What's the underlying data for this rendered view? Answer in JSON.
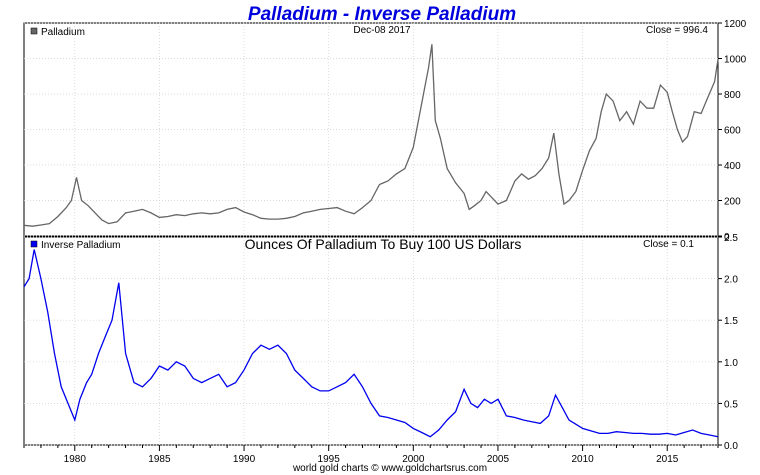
{
  "chart_title": "Palladium - Inverse Palladium",
  "date_label": "Dec-08  2017",
  "footer": "world gold charts © www.goldchartsrus.com",
  "colors": {
    "title": "#0000dd",
    "palladium": "#666666",
    "inverse": "#0000ee",
    "grid": "#cfcfcf"
  },
  "chart_data": [
    {
      "type": "line",
      "series": [
        {
          "name": "Palladium"
        }
      ],
      "close_label": "Close = 996.4",
      "ylim": [
        0,
        1200
      ],
      "yticks": [
        0,
        200,
        400,
        600,
        800,
        1000,
        1200
      ],
      "xlim": [
        1977,
        2018
      ],
      "x": [
        1977.0,
        1977.5,
        1978.0,
        1978.5,
        1979.0,
        1979.5,
        1979.8,
        1980.1,
        1980.4,
        1980.8,
        1981.2,
        1981.6,
        1982.0,
        1982.5,
        1983.0,
        1983.5,
        1984.0,
        1984.5,
        1985.0,
        1985.5,
        1986.0,
        1986.5,
        1987.0,
        1987.5,
        1988.0,
        1988.5,
        1989.0,
        1989.5,
        1990.0,
        1990.5,
        1991.0,
        1991.5,
        1992.0,
        1992.5,
        1993.0,
        1993.5,
        1994.0,
        1994.5,
        1995.0,
        1995.5,
        1996.0,
        1996.5,
        1997.0,
        1997.5,
        1998.0,
        1998.5,
        1999.0,
        1999.5,
        2000.0,
        2000.3,
        2000.6,
        2000.9,
        2001.1,
        2001.3,
        2001.6,
        2002.0,
        2002.5,
        2003.0,
        2003.3,
        2003.6,
        2004.0,
        2004.3,
        2004.7,
        2005.0,
        2005.5,
        2006.0,
        2006.4,
        2006.8,
        2007.2,
        2007.6,
        2008.0,
        2008.3,
        2008.6,
        2008.9,
        2009.2,
        2009.6,
        2010.0,
        2010.4,
        2010.8,
        2011.1,
        2011.4,
        2011.8,
        2012.2,
        2012.6,
        2013.0,
        2013.4,
        2013.8,
        2014.2,
        2014.6,
        2015.0,
        2015.3,
        2015.6,
        2015.9,
        2016.2,
        2016.6,
        2017.0,
        2017.4,
        2017.8,
        2018.0
      ],
      "values": [
        60,
        55,
        62,
        70,
        110,
        160,
        200,
        330,
        200,
        170,
        130,
        90,
        70,
        80,
        130,
        140,
        150,
        130,
        105,
        110,
        120,
        115,
        125,
        130,
        125,
        130,
        150,
        160,
        135,
        120,
        100,
        95,
        95,
        100,
        110,
        130,
        140,
        150,
        155,
        160,
        140,
        125,
        160,
        200,
        290,
        310,
        350,
        380,
        500,
        650,
        800,
        950,
        1080,
        650,
        550,
        380,
        300,
        240,
        150,
        170,
        200,
        250,
        210,
        180,
        200,
        310,
        350,
        320,
        340,
        380,
        440,
        580,
        350,
        180,
        200,
        250,
        370,
        480,
        550,
        700,
        800,
        760,
        650,
        700,
        630,
        760,
        720,
        720,
        850,
        810,
        700,
        600,
        530,
        560,
        700,
        690,
        780,
        870,
        996
      ]
    },
    {
      "type": "line",
      "series": [
        {
          "name": "Inverse Palladium"
        }
      ],
      "title": "Ounces Of Palladium To Buy 100 US Dollars",
      "close_label": "Close = 0.1",
      "ylim": [
        0,
        2.5
      ],
      "yticks": [
        0.0,
        0.5,
        1.0,
        1.5,
        2.0,
        2.5
      ],
      "xlim": [
        1977,
        2018
      ],
      "xticks": [
        1980,
        1985,
        1990,
        1995,
        2000,
        2005,
        2010,
        2015
      ],
      "x": [
        1977.0,
        1977.3,
        1977.6,
        1978.0,
        1978.4,
        1978.8,
        1979.2,
        1979.6,
        1980.0,
        1980.3,
        1980.7,
        1981.0,
        1981.4,
        1981.8,
        1982.2,
        1982.6,
        1983.0,
        1983.5,
        1984.0,
        1984.5,
        1985.0,
        1985.5,
        1986.0,
        1986.5,
        1987.0,
        1987.5,
        1988.0,
        1988.5,
        1989.0,
        1989.5,
        1990.0,
        1990.5,
        1991.0,
        1991.5,
        1992.0,
        1992.5,
        1993.0,
        1993.5,
        1994.0,
        1994.5,
        1995.0,
        1995.5,
        1996.0,
        1996.5,
        1997.0,
        1997.5,
        1998.0,
        1998.5,
        1999.0,
        1999.5,
        2000.0,
        2000.5,
        2001.0,
        2001.5,
        2002.0,
        2002.5,
        2003.0,
        2003.4,
        2003.8,
        2004.2,
        2004.6,
        2005.0,
        2005.5,
        2006.0,
        2006.5,
        2007.0,
        2007.5,
        2008.0,
        2008.4,
        2008.8,
        2009.2,
        2009.6,
        2010.0,
        2010.5,
        2011.0,
        2011.5,
        2012.0,
        2012.5,
        2013.0,
        2013.5,
        2014.0,
        2014.5,
        2015.0,
        2015.5,
        2016.0,
        2016.5,
        2017.0,
        2017.5,
        2018.0
      ],
      "values": [
        1.9,
        2.0,
        2.35,
        2.0,
        1.6,
        1.1,
        0.7,
        0.5,
        0.3,
        0.55,
        0.75,
        0.85,
        1.1,
        1.3,
        1.5,
        1.95,
        1.1,
        0.75,
        0.7,
        0.8,
        0.95,
        0.9,
        1.0,
        0.95,
        0.8,
        0.75,
        0.8,
        0.85,
        0.7,
        0.75,
        0.9,
        1.1,
        1.2,
        1.15,
        1.2,
        1.1,
        0.9,
        0.8,
        0.7,
        0.65,
        0.65,
        0.7,
        0.75,
        0.85,
        0.7,
        0.5,
        0.35,
        0.33,
        0.3,
        0.27,
        0.2,
        0.15,
        0.1,
        0.18,
        0.3,
        0.4,
        0.67,
        0.5,
        0.45,
        0.55,
        0.5,
        0.55,
        0.35,
        0.33,
        0.3,
        0.28,
        0.26,
        0.35,
        0.6,
        0.45,
        0.3,
        0.25,
        0.2,
        0.17,
        0.14,
        0.14,
        0.16,
        0.15,
        0.14,
        0.14,
        0.13,
        0.13,
        0.14,
        0.12,
        0.15,
        0.18,
        0.14,
        0.12,
        0.1
      ]
    }
  ]
}
